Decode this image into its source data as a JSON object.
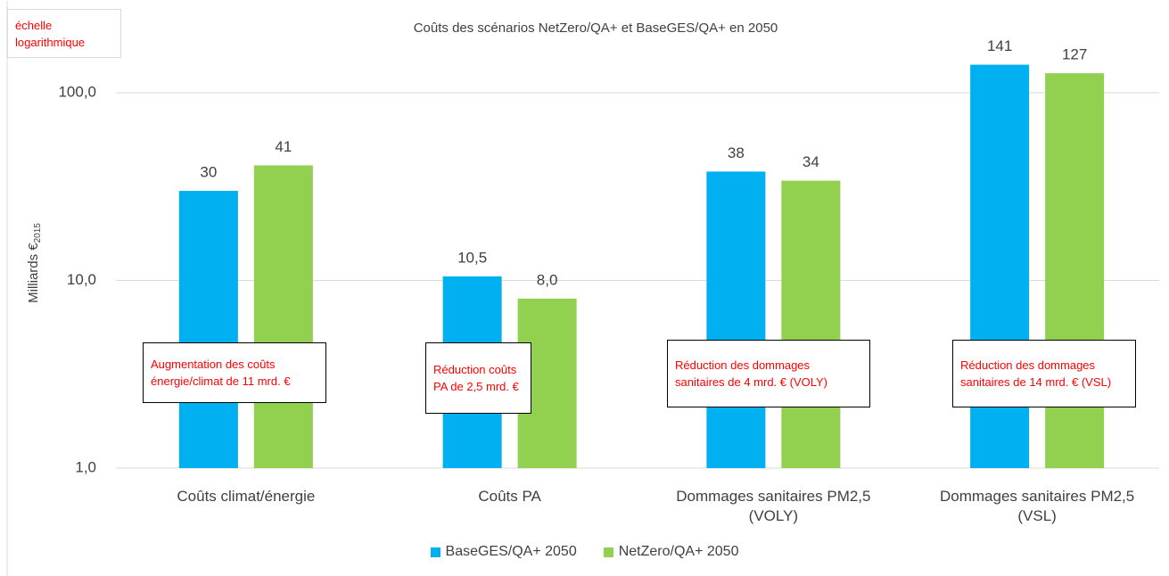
{
  "chart_data": {
    "type": "bar",
    "title": "Coûts des scénarios NetZero/QA+ et BaseGES/QA+ en 2050",
    "y_label": "Milliards €",
    "y_label_subscript": "2015",
    "categories": [
      "Coûts climat/énergie",
      "Coûts PA",
      "Dommages sanitaires PM2,5 (VOLY)",
      "Dommages sanitaires PM2,5 (VSL)"
    ],
    "series": [
      {
        "name": "BaseGES/QA+ 2050",
        "color": "#00b0f0",
        "values": [
          30,
          10.5,
          38,
          141
        ],
        "value_labels": [
          "30",
          "10,5",
          "38",
          "141"
        ]
      },
      {
        "name": "NetZero/QA+ 2050",
        "color": "#92d050",
        "values": [
          41,
          8.0,
          34,
          127
        ],
        "value_labels": [
          "41",
          "8,0",
          "34",
          "127"
        ]
      }
    ],
    "ylim": [
      1,
      200
    ],
    "log_scale": true,
    "yticks": [
      {
        "value": 1,
        "label": "1,0"
      },
      {
        "value": 10,
        "label": "10,0"
      },
      {
        "value": 100,
        "label": "100,0"
      }
    ],
    "grid": true,
    "legend": "bottom",
    "annotations": [
      "échelle logarithmique",
      "Augmentation des coûts énergie/climat de 11 mrd. €",
      "Réduction coûts PA de 2,5 mrd. €",
      "Réduction des dommages sanitaires de 4 mrd. € (VOLY)",
      "Réduction des dommages sanitaires de 14 mrd. € (VSL)"
    ]
  }
}
